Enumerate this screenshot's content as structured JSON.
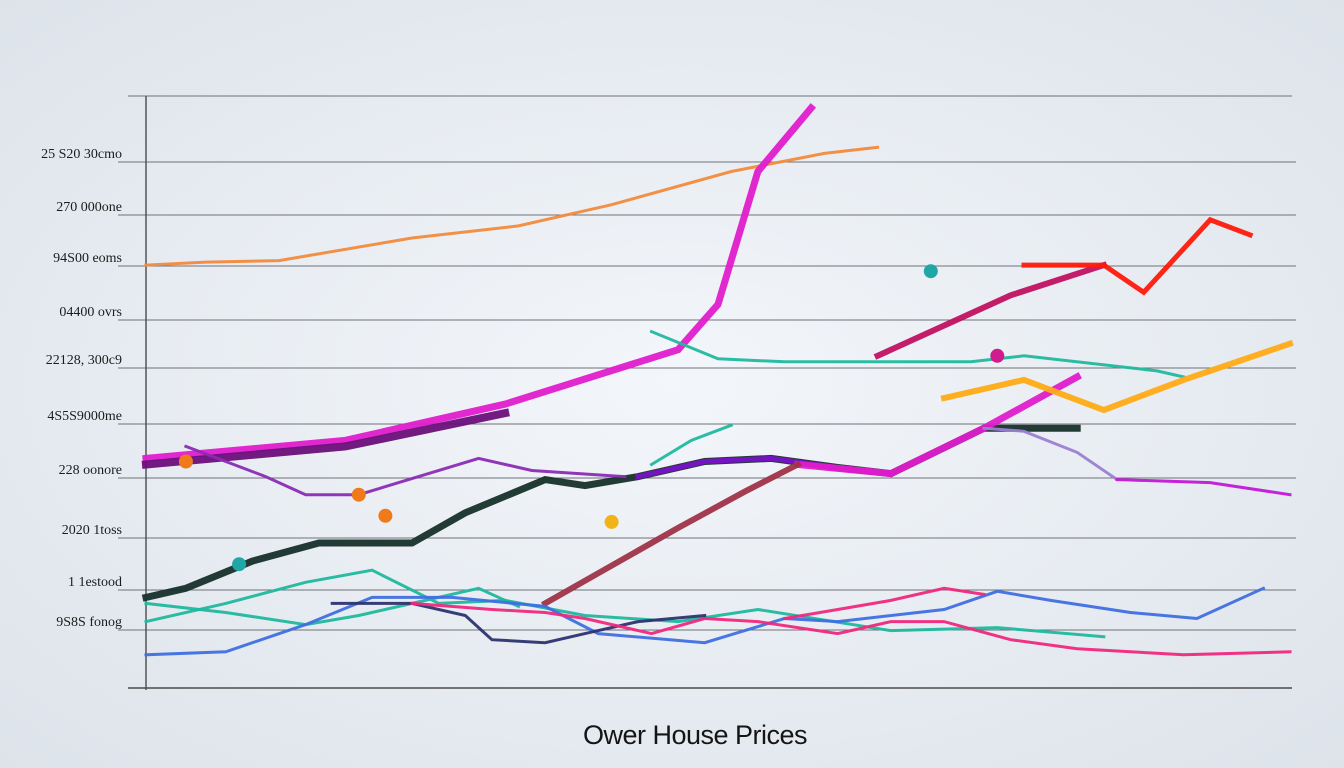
{
  "chart_data": {
    "type": "line",
    "title": "Ower House Prices",
    "xlabel": "",
    "ylabel": "",
    "y_tick_labels": [
      "25 S20 30cmo",
      "270 000one",
      "94S00 eoms",
      "04400 ovrs",
      "22128, 300c9",
      "4S5S9000me",
      "228 oonore",
      "2020 1toss",
      "1 1estood",
      "9S8S fonog"
    ],
    "grid": true,
    "legend": "none",
    "series": [
      {
        "color": "#f28a3c",
        "values": [
          [
            0,
            2.2
          ],
          [
            4.5,
            2.3
          ],
          [
            10,
            2.35
          ],
          [
            20,
            3.1
          ],
          [
            28,
            3.5
          ],
          [
            35,
            4.2
          ],
          [
            44,
            5.3
          ],
          [
            51,
            5.9
          ],
          [
            55,
            6.1
          ]
        ]
      },
      {
        "color": "#e01ccc",
        "values": [
          [
            0,
            -4.2
          ],
          [
            15,
            -3.6
          ],
          [
            27,
            -2.4
          ],
          [
            40,
            -0.6
          ],
          [
            43,
            0.9
          ],
          [
            46,
            5.3
          ],
          [
            50,
            7.4
          ]
        ]
      },
      {
        "color": "#6a0f7a",
        "values": [
          [
            0,
            -4.4
          ],
          [
            15,
            -3.8
          ],
          [
            27,
            -2.7
          ]
        ]
      },
      {
        "color": "#20b89e",
        "values": [
          [
            38,
            0.0
          ],
          [
            43,
            -0.9
          ],
          [
            48,
            -1.0
          ],
          [
            55,
            -1.0
          ],
          [
            62,
            -1.0
          ],
          [
            66,
            -0.8
          ],
          [
            76,
            -1.3
          ],
          [
            78,
            -1.5
          ]
        ]
      },
      {
        "color": "#20b89e",
        "values": [
          [
            38,
            -4.4
          ],
          [
            41,
            -3.6
          ],
          [
            44,
            -3.1
          ]
        ]
      },
      {
        "color": "#17302a",
        "values": [
          [
            0,
            -8.8
          ],
          [
            3,
            -8.5
          ],
          [
            8,
            -7.6
          ],
          [
            13,
            -7.0
          ],
          [
            20,
            -7.0
          ],
          [
            24,
            -6.0
          ],
          [
            30,
            -4.9
          ],
          [
            33,
            -5.1
          ],
          [
            37,
            -4.8
          ],
          [
            42,
            -4.3
          ],
          [
            47,
            -4.2
          ],
          [
            52,
            -4.5
          ],
          [
            56,
            -4.7
          ],
          [
            63,
            -3.2
          ],
          [
            70,
            -3.2
          ]
        ]
      },
      {
        "color": "#7a10c9",
        "values": [
          [
            37,
            -4.8
          ],
          [
            42,
            -4.3
          ],
          [
            47,
            -4.2
          ],
          [
            52,
            -4.5
          ],
          [
            56,
            -4.7
          ]
        ]
      },
      {
        "color": "#e01ccc",
        "values": [
          [
            49,
            -4.4
          ],
          [
            56,
            -4.7
          ],
          [
            63,
            -3.2
          ],
          [
            70,
            -1.5
          ]
        ]
      },
      {
        "color": "#ffab14",
        "values": [
          [
            60,
            -2.2
          ],
          [
            66,
            -1.6
          ],
          [
            72,
            -2.6
          ],
          [
            78,
            -1.6
          ],
          [
            86,
            -0.4
          ]
        ]
      },
      {
        "color": "#9f3348",
        "values": [
          [
            30,
            -9.0
          ],
          [
            34,
            -8.0
          ],
          [
            40,
            -6.5
          ],
          [
            45,
            -5.3
          ],
          [
            49,
            -4.4
          ]
        ]
      },
      {
        "color": "#c11162",
        "values": [
          [
            55,
            -0.8
          ],
          [
            65,
            1.2
          ],
          [
            72,
            2.2
          ]
        ]
      },
      {
        "color": "#ff1a0a",
        "values": [
          [
            66,
            2.2
          ],
          [
            72,
            2.2
          ],
          [
            75,
            1.3
          ],
          [
            80,
            3.7
          ],
          [
            83,
            3.2
          ]
        ]
      },
      {
        "color": "#9b7fd2",
        "values": [
          [
            63,
            -3.2
          ],
          [
            66,
            -3.3
          ],
          [
            70,
            -4.0
          ],
          [
            73,
            -4.9
          ]
        ]
      },
      {
        "color": "#c218d8",
        "values": [
          [
            73,
            -4.9
          ],
          [
            80,
            -5.0
          ],
          [
            86,
            -5.4
          ]
        ]
      },
      {
        "color": "#8b2bb5",
        "values": [
          [
            3,
            -3.8
          ],
          [
            9,
            -4.8
          ],
          [
            12,
            -5.4
          ],
          [
            16,
            -5.4
          ],
          [
            19,
            -5.0
          ],
          [
            25,
            -4.2
          ],
          [
            29,
            -4.6
          ],
          [
            36,
            -4.8
          ]
        ]
      },
      {
        "color": "#20b89e",
        "values": [
          [
            0,
            -9.0
          ],
          [
            6,
            -9.3
          ],
          [
            12,
            -9.7
          ],
          [
            16,
            -9.4
          ],
          [
            20,
            -9.0
          ],
          [
            25,
            -8.5
          ],
          [
            28,
            -9.1
          ]
        ]
      },
      {
        "color": "#20b89e",
        "values": [
          [
            0,
            -9.6
          ],
          [
            6,
            -9.0
          ],
          [
            12,
            -8.3
          ],
          [
            17,
            -7.9
          ],
          [
            22,
            -9.0
          ],
          [
            27,
            -8.9
          ],
          [
            33,
            -9.4
          ],
          [
            40,
            -9.6
          ],
          [
            46,
            -9.2
          ],
          [
            56,
            -9.9
          ],
          [
            64,
            -9.8
          ],
          [
            72,
            -10.1
          ]
        ]
      },
      {
        "color": "#3f6fe0",
        "values": [
          [
            0,
            -10.7
          ],
          [
            6,
            -10.6
          ],
          [
            12,
            -9.7
          ],
          [
            17,
            -8.8
          ],
          [
            23,
            -8.8
          ],
          [
            30,
            -9.1
          ],
          [
            34,
            -10.0
          ],
          [
            42,
            -10.3
          ],
          [
            48,
            -9.5
          ],
          [
            52,
            -9.6
          ],
          [
            60,
            -9.2
          ],
          [
            64,
            -8.6
          ],
          [
            68,
            -8.9
          ],
          [
            74,
            -9.3
          ],
          [
            79,
            -9.5
          ],
          [
            84,
            -8.5
          ]
        ]
      },
      {
        "color": "#2d3370",
        "values": [
          [
            14,
            -9.0
          ],
          [
            20,
            -9.0
          ],
          [
            24,
            -9.4
          ],
          [
            26,
            -10.2
          ],
          [
            30,
            -10.3
          ],
          [
            33,
            -10.0
          ],
          [
            37,
            -9.6
          ],
          [
            42,
            -9.4
          ]
        ]
      },
      {
        "color": "#f0287e",
        "values": [
          [
            20,
            -9.0
          ],
          [
            26,
            -9.2
          ],
          [
            30,
            -9.3
          ],
          [
            33,
            -9.5
          ],
          [
            38,
            -10.0
          ],
          [
            42,
            -9.5
          ],
          [
            46,
            -9.6
          ],
          [
            52,
            -10.0
          ],
          [
            56,
            -9.6
          ],
          [
            60,
            -9.6
          ],
          [
            65,
            -10.2
          ],
          [
            70,
            -10.5
          ],
          [
            78,
            -10.7
          ],
          [
            86,
            -10.6
          ]
        ]
      },
      {
        "color": "#f0287e",
        "values": [
          [
            48,
            -9.5
          ],
          [
            52,
            -9.2
          ],
          [
            56,
            -8.9
          ],
          [
            60,
            -8.5
          ],
          [
            63,
            -8.7
          ]
        ]
      }
    ],
    "markers": [
      {
        "color": "#1fa6a6",
        "values": [
          [
            59,
            2.0
          ]
        ]
      },
      {
        "color": "#f07a1a",
        "values": [
          [
            16,
            -5.4
          ],
          [
            18,
            -6.1
          ]
        ]
      },
      {
        "color": "#1fa6a6",
        "values": [
          [
            7,
            -7.7
          ]
        ]
      },
      {
        "color": "#f2b316",
        "values": [
          [
            35,
            -6.3
          ]
        ]
      },
      {
        "color": "#f07a1a",
        "values": [
          [
            3,
            -4.3
          ]
        ]
      },
      {
        "color": "#d01c8f",
        "values": [
          [
            64,
            -0.8
          ]
        ]
      }
    ],
    "xlim": [
      0,
      86
    ],
    "ylim": [
      -11.8,
      7.8
    ]
  }
}
